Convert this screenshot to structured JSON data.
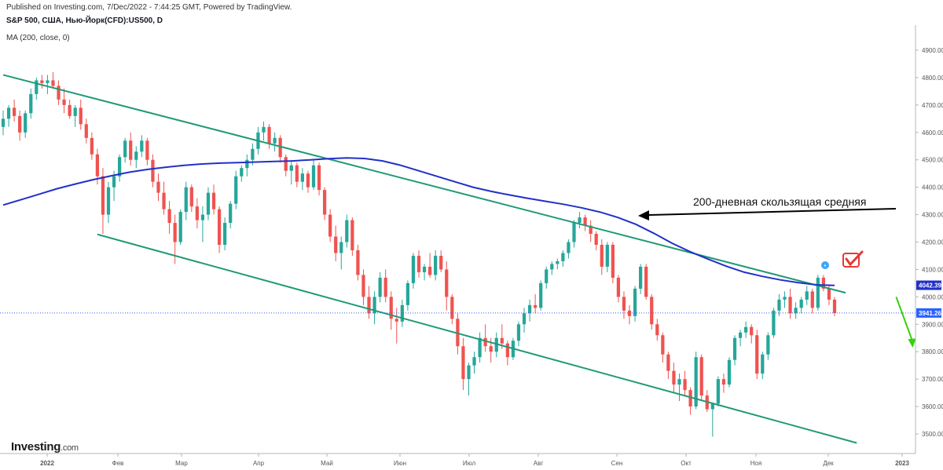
{
  "header": {
    "published": "Published on Investing.com, 7/Dec/2022 - 7:44:25 GMT, Powered by TradingView.",
    "symbol": "S&P 500, США, Нью-Йорк(CFD):US500, D",
    "indicator": "MA (200, close, 0)"
  },
  "logo": {
    "brand": "Investing",
    "suffix": ".com"
  },
  "colors": {
    "up": "#26a69a",
    "down": "#ef5350",
    "ma": "#2130c9",
    "channel": "#1f9a78",
    "arrow_down": "#35d10c",
    "annotation_arrow": "#000000",
    "price_line": "#3d5afe",
    "check": "#e53935"
  },
  "annotation": {
    "text": "200-дневная скользящая средняя"
  },
  "price_labels": {
    "ma_value": "4042.39",
    "last_value": "3941.26"
  },
  "chart_data": {
    "type": "candlestick",
    "title": "S&P 500, США, Нью-Йорк(CFD):US500, D",
    "ylim": [
      3440,
      4960
    ],
    "y_ticks": [
      "4900.00",
      "4800.00",
      "4700.00",
      "4600.00",
      "4500.00",
      "4400.00",
      "4300.00",
      "4200.00",
      "4100.00",
      "4000.00",
      "3900.00",
      "3800.00",
      "3700.00",
      "3600.00",
      "3500.00"
    ],
    "x_tick_labels": [
      "2022",
      "Фев",
      "Мар",
      "Апр",
      "Май",
      "Июн",
      "Июл",
      "Авг",
      "Сен",
      "Окт",
      "Ноя",
      "Дек",
      "2023"
    ],
    "series": [
      {
        "name": "US500",
        "kind": "price",
        "points": [
          [
            4620,
            4680,
            4590,
            4650
          ],
          [
            4650,
            4700,
            4620,
            4690
          ],
          [
            4690,
            4720,
            4640,
            4660
          ],
          [
            4660,
            4680,
            4570,
            4600
          ],
          [
            4600,
            4680,
            4580,
            4670
          ],
          [
            4670,
            4760,
            4650,
            4740
          ],
          [
            4740,
            4800,
            4720,
            4790
          ],
          [
            4790,
            4810,
            4760,
            4780
          ],
          [
            4780,
            4810,
            4740,
            4790
          ],
          [
            4790,
            4820,
            4760,
            4770
          ],
          [
            4770,
            4790,
            4700,
            4720
          ],
          [
            4720,
            4760,
            4670,
            4700
          ],
          [
            4700,
            4720,
            4650,
            4660
          ],
          [
            4660,
            4700,
            4620,
            4690
          ],
          [
            4690,
            4720,
            4610,
            4630
          ],
          [
            4630,
            4650,
            4560,
            4580
          ],
          [
            4580,
            4600,
            4500,
            4520
          ],
          [
            4520,
            4540,
            4410,
            4440
          ],
          [
            4440,
            4470,
            4230,
            4300
          ],
          [
            4300,
            4420,
            4270,
            4400
          ],
          [
            4400,
            4460,
            4350,
            4440
          ],
          [
            4440,
            4520,
            4420,
            4510
          ],
          [
            4510,
            4580,
            4490,
            4570
          ],
          [
            4570,
            4600,
            4480,
            4500
          ],
          [
            4500,
            4550,
            4470,
            4530
          ],
          [
            4530,
            4590,
            4510,
            4570
          ],
          [
            4570,
            4580,
            4480,
            4500
          ],
          [
            4500,
            4520,
            4400,
            4420
          ],
          [
            4420,
            4450,
            4350,
            4380
          ],
          [
            4380,
            4420,
            4300,
            4320
          ],
          [
            4320,
            4350,
            4230,
            4270
          ],
          [
            4270,
            4300,
            4120,
            4200
          ],
          [
            4200,
            4320,
            4190,
            4310
          ],
          [
            4310,
            4420,
            4280,
            4400
          ],
          [
            4400,
            4410,
            4310,
            4330
          ],
          [
            4330,
            4360,
            4250,
            4280
          ],
          [
            4280,
            4330,
            4200,
            4300
          ],
          [
            4300,
            4400,
            4280,
            4380
          ],
          [
            4380,
            4410,
            4300,
            4320
          ],
          [
            4320,
            4330,
            4160,
            4190
          ],
          [
            4190,
            4290,
            4170,
            4270
          ],
          [
            4270,
            4350,
            4250,
            4340
          ],
          [
            4340,
            4460,
            4320,
            4440
          ],
          [
            4440,
            4480,
            4420,
            4470
          ],
          [
            4470,
            4520,
            4440,
            4500
          ],
          [
            4500,
            4560,
            4480,
            4540
          ],
          [
            4540,
            4620,
            4520,
            4600
          ],
          [
            4600,
            4640,
            4570,
            4620
          ],
          [
            4620,
            4630,
            4540,
            4560
          ],
          [
            4560,
            4600,
            4530,
            4580
          ],
          [
            4580,
            4590,
            4490,
            4510
          ],
          [
            4510,
            4520,
            4440,
            4460
          ],
          [
            4460,
            4500,
            4410,
            4480
          ],
          [
            4480,
            4490,
            4400,
            4420
          ],
          [
            4420,
            4470,
            4390,
            4450
          ],
          [
            4450,
            4460,
            4380,
            4400
          ],
          [
            4400,
            4500,
            4390,
            4480
          ],
          [
            4480,
            4490,
            4370,
            4390
          ],
          [
            4390,
            4400,
            4280,
            4300
          ],
          [
            4300,
            4320,
            4200,
            4220
          ],
          [
            4220,
            4260,
            4130,
            4160
          ],
          [
            4160,
            4220,
            4100,
            4200
          ],
          [
            4200,
            4300,
            4180,
            4280
          ],
          [
            4280,
            4290,
            4150,
            4170
          ],
          [
            4170,
            4190,
            4060,
            4080
          ],
          [
            4080,
            4100,
            3970,
            4000
          ],
          [
            4000,
            4040,
            3920,
            3940
          ],
          [
            3940,
            4020,
            3900,
            4000
          ],
          [
            4000,
            4090,
            3980,
            4070
          ],
          [
            4070,
            4100,
            3980,
            4000
          ],
          [
            4000,
            4020,
            3880,
            3920
          ],
          [
            3920,
            3960,
            3830,
            3910
          ],
          [
            3910,
            3990,
            3890,
            3970
          ],
          [
            3970,
            4060,
            3950,
            4050
          ],
          [
            4050,
            4160,
            4030,
            4150
          ],
          [
            4150,
            4170,
            4070,
            4090
          ],
          [
            4090,
            4120,
            4060,
            4110
          ],
          [
            4110,
            4160,
            4070,
            4080
          ],
          [
            4080,
            4170,
            4060,
            4150
          ],
          [
            4150,
            4170,
            4090,
            4100
          ],
          [
            4100,
            4130,
            3950,
            4000
          ],
          [
            4000,
            4010,
            3900,
            3920
          ],
          [
            3920,
            3940,
            3790,
            3820
          ],
          [
            3820,
            3850,
            3660,
            3700
          ],
          [
            3700,
            3760,
            3640,
            3750
          ],
          [
            3750,
            3800,
            3720,
            3780
          ],
          [
            3780,
            3870,
            3760,
            3850
          ],
          [
            3850,
            3900,
            3800,
            3820
          ],
          [
            3820,
            3850,
            3760,
            3800
          ],
          [
            3800,
            3870,
            3780,
            3850
          ],
          [
            3850,
            3900,
            3810,
            3830
          ],
          [
            3830,
            3840,
            3750,
            3780
          ],
          [
            3780,
            3850,
            3770,
            3840
          ],
          [
            3840,
            3910,
            3820,
            3900
          ],
          [
            3900,
            3960,
            3870,
            3940
          ],
          [
            3940,
            3990,
            3910,
            3970
          ],
          [
            3970,
            4010,
            3940,
            3960
          ],
          [
            3960,
            4060,
            3950,
            4050
          ],
          [
            4050,
            4110,
            4030,
            4100
          ],
          [
            4100,
            4130,
            4080,
            4120
          ],
          [
            4120,
            4140,
            4100,
            4130
          ],
          [
            4130,
            4170,
            4110,
            4160
          ],
          [
            4160,
            4210,
            4140,
            4200
          ],
          [
            4200,
            4280,
            4180,
            4270
          ],
          [
            4270,
            4310,
            4250,
            4290
          ],
          [
            4290,
            4300,
            4240,
            4260
          ],
          [
            4260,
            4280,
            4200,
            4230
          ],
          [
            4230,
            4240,
            4170,
            4190
          ],
          [
            4190,
            4210,
            4080,
            4110
          ],
          [
            4110,
            4200,
            4090,
            4190
          ],
          [
            4190,
            4200,
            4050,
            4070
          ],
          [
            4070,
            4080,
            3980,
            4000
          ],
          [
            4000,
            4020,
            3920,
            3950
          ],
          [
            3950,
            3970,
            3900,
            3930
          ],
          [
            3930,
            4040,
            3910,
            4030
          ],
          [
            4030,
            4120,
            4010,
            4110
          ],
          [
            4110,
            4120,
            3990,
            4000
          ],
          [
            4000,
            4010,
            3880,
            3900
          ],
          [
            3900,
            3920,
            3840,
            3860
          ],
          [
            3860,
            3870,
            3760,
            3790
          ],
          [
            3790,
            3800,
            3700,
            3730
          ],
          [
            3730,
            3760,
            3650,
            3680
          ],
          [
            3680,
            3720,
            3620,
            3700
          ],
          [
            3700,
            3730,
            3640,
            3660
          ],
          [
            3660,
            3670,
            3570,
            3600
          ],
          [
            3600,
            3800,
            3590,
            3780
          ],
          [
            3780,
            3790,
            3620,
            3640
          ],
          [
            3640,
            3660,
            3580,
            3590
          ],
          [
            3590,
            3600,
            3490,
            3610
          ],
          [
            3610,
            3710,
            3600,
            3700
          ],
          [
            3700,
            3720,
            3650,
            3680
          ],
          [
            3680,
            3780,
            3670,
            3770
          ],
          [
            3770,
            3860,
            3750,
            3850
          ],
          [
            3850,
            3880,
            3820,
            3870
          ],
          [
            3870,
            3910,
            3850,
            3890
          ],
          [
            3890,
            3900,
            3830,
            3860
          ],
          [
            3860,
            3880,
            3700,
            3720
          ],
          [
            3720,
            3800,
            3700,
            3790
          ],
          [
            3790,
            3870,
            3770,
            3860
          ],
          [
            3860,
            3960,
            3850,
            3950
          ],
          [
            3950,
            4010,
            3930,
            3990
          ],
          [
            3990,
            4020,
            3960,
            4000
          ],
          [
            4000,
            4030,
            3920,
            3940
          ],
          [
            3940,
            3980,
            3920,
            3960
          ],
          [
            3960,
            4000,
            3940,
            3990
          ],
          [
            3990,
            4040,
            3970,
            4020
          ],
          [
            4020,
            4030,
            3940,
            3960
          ],
          [
            3960,
            4080,
            3950,
            4070
          ],
          [
            4070,
            4080,
            4020,
            4030
          ],
          [
            4030,
            4040,
            3970,
            3990
          ],
          [
            3990,
            4000,
            3930,
            3941
          ]
        ]
      },
      {
        "name": "MA (200, close, 0)",
        "kind": "line",
        "values": [
          4335,
          4355,
          4375,
          4395,
          4412,
          4428,
          4442,
          4455,
          4465,
          4473,
          4480,
          4485,
          4488,
          4490,
          4492,
          4494,
          4496,
          4500,
          4504,
          4507,
          4505,
          4496,
          4480,
          4460,
          4440,
          4420,
          4400,
          4385,
          4372,
          4360,
          4349,
          4338,
          4325,
          4310,
          4290,
          4265,
          4232,
          4196,
          4165,
          4138,
          4112,
          4090,
          4075,
          4062,
          4052,
          4044,
          4042
        ]
      }
    ],
    "channel": {
      "upper": [
        [
          0,
          4810
        ],
        [
          152,
          4015
        ]
      ],
      "lower": [
        [
          17,
          4228
        ],
        [
          154,
          3467
        ]
      ]
    },
    "down_arrow": {
      "from": [
        158,
        4000
      ],
      "to": [
        160,
        3820
      ]
    }
  }
}
